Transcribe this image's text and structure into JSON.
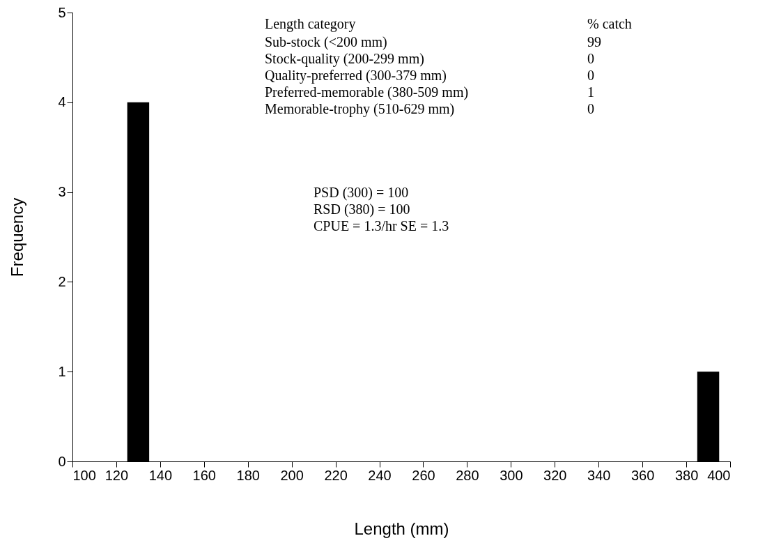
{
  "chart_data": {
    "type": "histogram",
    "xlabel": "Length (mm)",
    "ylabel": "Frequency",
    "bins": [
      125,
      135,
      145,
      155,
      165,
      175,
      185,
      195,
      205,
      215,
      225,
      235,
      245,
      255,
      265,
      275,
      285,
      295,
      305,
      315,
      325,
      335,
      345,
      355,
      365,
      375,
      385,
      395
    ],
    "values": [
      4,
      0,
      0,
      0,
      0,
      0,
      0,
      0,
      0,
      0,
      0,
      0,
      0,
      0,
      0,
      0,
      0,
      0,
      0,
      0,
      0,
      0,
      0,
      0,
      0,
      0,
      1
    ],
    "color": "#000000",
    "xlim": [
      100,
      400
    ],
    "xticks": [
      100,
      120,
      140,
      160,
      180,
      200,
      220,
      240,
      260,
      280,
      300,
      320,
      340,
      360,
      380,
      400
    ],
    "ylim": [
      0,
      5
    ],
    "yticks": [
      0,
      1,
      2,
      3,
      4,
      5
    ],
    "grid": false,
    "annotations": [
      "Length category",
      "% catch",
      "Sub-stock (<200 mm)",
      "99",
      "Stock-quality (200-299 mm)",
      "0",
      "Quality-preferred (300-379 mm)",
      "0",
      "Preferred-memorable (380-509 mm)",
      "1",
      "Memorable-trophy (510-629 mm)",
      "0",
      "PSD (300) = 100",
      "RSD (380) = 100",
      "CPUE = 1.3/hr SE = 1.3"
    ]
  }
}
